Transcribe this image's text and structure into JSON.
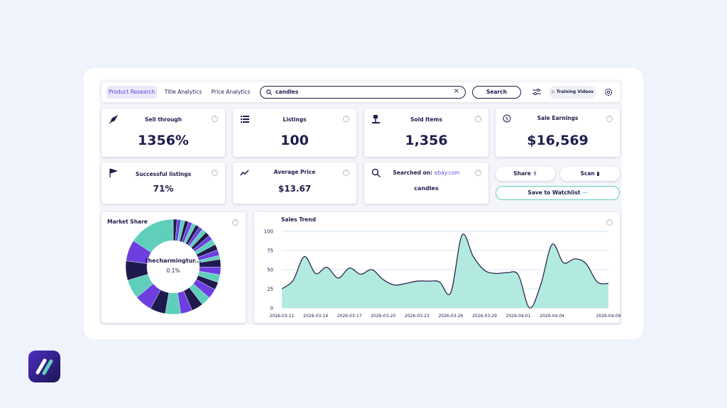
{
  "nav": {
    "tabs": [
      "Product Research",
      "Title Analytics",
      "Price Analytics"
    ],
    "search_query": "candles",
    "search_button": "Search",
    "training_videos": "Training Videos"
  },
  "metrics": [
    {
      "label": "Sell through",
      "value": "1356%"
    },
    {
      "label": "Listings",
      "value": "100"
    },
    {
      "label": "Sold Items",
      "value": "1,356"
    },
    {
      "label": "Sale Earnings",
      "value": "$16,569"
    },
    {
      "label": "Successful listings",
      "value": "71%"
    },
    {
      "label": "Average Price",
      "value": "$13.67"
    }
  ],
  "searched": {
    "label": "Searched on:",
    "site": "ebay.com",
    "query": "candles"
  },
  "actions": {
    "share": "Share",
    "scan": "Scan",
    "watchlist": "Save to Watchlist"
  },
  "chart_data": [
    {
      "type": "donut",
      "title": "Market Share",
      "center_label": "thecharmingtur...",
      "center_value": "0.1%",
      "values": [
        1,
        1,
        1,
        1,
        1,
        1,
        1,
        1,
        1.2,
        1.2,
        1.2,
        1.5,
        1.5,
        1.5,
        1,
        2,
        2,
        2,
        2,
        2.5,
        2.5,
        3,
        3,
        4,
        4,
        4.5,
        5,
        5,
        5.5,
        12
      ],
      "colors": [
        "#1f1a4d",
        "#6d3fe0",
        "#5fcfbb"
      ]
    },
    {
      "type": "area",
      "title": "Sales Trend",
      "categories": [
        "2026-03-11",
        null,
        null,
        "2026-03-14",
        null,
        null,
        "2026-03-17",
        null,
        null,
        "2026-03-20",
        null,
        null,
        "2026-03-23",
        null,
        null,
        "2026-03-26",
        null,
        null,
        "2026-03-29",
        null,
        null,
        "2026-04-01",
        null,
        null,
        "2026-04-04",
        null,
        null,
        null,
        null,
        "2026-04-09"
      ],
      "values": [
        25,
        36,
        67,
        45,
        53,
        39,
        52,
        44,
        50,
        37,
        30,
        32,
        35,
        35,
        34,
        20,
        95,
        67,
        49,
        45,
        46,
        43,
        0,
        31,
        83,
        59,
        64,
        58,
        34,
        32
      ],
      "ylim": [
        0,
        100
      ],
      "yticks": [
        0,
        25,
        50,
        75,
        100
      ],
      "grid": true,
      "color": "#b3eadf",
      "line_color": "#2b2a52"
    }
  ]
}
